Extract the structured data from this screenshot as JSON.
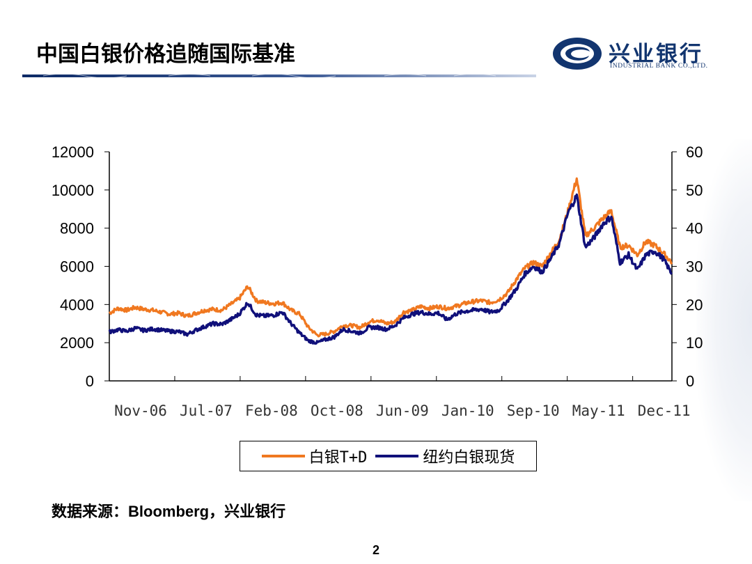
{
  "slide": {
    "title": "中国白银价格追随国际基准",
    "source": "数据来源：Bloomberg，兴业银行",
    "page_number": "2"
  },
  "logo": {
    "name_cn": "兴业银行",
    "name_en": "INDUSTRIAL BANK CO.,LTD.",
    "color": "#12356f"
  },
  "chart_data": {
    "type": "line",
    "y_left": {
      "ticks": [
        "12000",
        "10000",
        "8000",
        "6000",
        "4000",
        "2000",
        "0"
      ],
      "lim": [
        0,
        12000
      ]
    },
    "y_right": {
      "ticks": [
        "60",
        "50",
        "40",
        "30",
        "20",
        "10",
        "0"
      ],
      "lim": [
        0,
        60
      ]
    },
    "x_ticks": [
      "Nov-06",
      "Jul-07",
      "Feb-08",
      "Oct-08",
      "Jun-09",
      "Jan-10",
      "Sep-10",
      "May-11",
      "Dec-11"
    ],
    "series": [
      {
        "name": "白银T+D",
        "axis": "left",
        "color": "#f07820",
        "points": [
          [
            "2006-11",
            3550
          ],
          [
            "2006-12",
            3800
          ],
          [
            "2007-01",
            3700
          ],
          [
            "2007-02",
            3850
          ],
          [
            "2007-03",
            3750
          ],
          [
            "2007-04",
            3700
          ],
          [
            "2007-05",
            3600
          ],
          [
            "2007-06",
            3500
          ],
          [
            "2007-07",
            3550
          ],
          [
            "2007-08",
            3400
          ],
          [
            "2007-09",
            3550
          ],
          [
            "2007-10",
            3700
          ],
          [
            "2007-11",
            3750
          ],
          [
            "2007-12",
            3700
          ],
          [
            "2008-01",
            4000
          ],
          [
            "2008-02",
            4300
          ],
          [
            "2008-03",
            4950
          ],
          [
            "2008-04",
            4200
          ],
          [
            "2008-05",
            4100
          ],
          [
            "2008-06",
            4050
          ],
          [
            "2008-07",
            4100
          ],
          [
            "2008-08",
            3700
          ],
          [
            "2008-09",
            3500
          ],
          [
            "2008-10",
            2800
          ],
          [
            "2008-11",
            2400
          ],
          [
            "2008-12",
            2450
          ],
          [
            "2009-01",
            2600
          ],
          [
            "2009-02",
            2900
          ],
          [
            "2009-03",
            2900
          ],
          [
            "2009-04",
            2800
          ],
          [
            "2009-05",
            3100
          ],
          [
            "2009-06",
            3200
          ],
          [
            "2009-07",
            3000
          ],
          [
            "2009-08",
            3100
          ],
          [
            "2009-09",
            3600
          ],
          [
            "2009-10",
            3700
          ],
          [
            "2009-11",
            3900
          ],
          [
            "2009-12",
            3800
          ],
          [
            "2010-01",
            3900
          ],
          [
            "2010-02",
            3800
          ],
          [
            "2010-03",
            3900
          ],
          [
            "2010-04",
            4050
          ],
          [
            "2010-05",
            4150
          ],
          [
            "2010-06",
            4200
          ],
          [
            "2010-07",
            4100
          ],
          [
            "2010-08",
            4250
          ],
          [
            "2010-09",
            4600
          ],
          [
            "2010-10",
            5300
          ],
          [
            "2010-11",
            5900
          ],
          [
            "2010-12",
            6200
          ],
          [
            "2011-01",
            6000
          ],
          [
            "2011-02",
            6700
          ],
          [
            "2011-03",
            7400
          ],
          [
            "2011-04",
            8900
          ],
          [
            "2011-05",
            10600
          ],
          [
            "2011-06",
            7600
          ],
          [
            "2011-07",
            8000
          ],
          [
            "2011-08",
            8500
          ],
          [
            "2011-09",
            8900
          ],
          [
            "2011-10",
            7000
          ],
          [
            "2011-11",
            7100
          ],
          [
            "2011-12",
            6600
          ],
          [
            "2012-01",
            7300
          ],
          [
            "2012-02",
            7100
          ],
          [
            "2012-03",
            6700
          ],
          [
            "2012-04",
            6200
          ]
        ]
      },
      {
        "name": "纽约白银现货",
        "axis": "right",
        "color": "#10107a",
        "points": [
          [
            "2006-11",
            12.8
          ],
          [
            "2006-12",
            13.4
          ],
          [
            "2007-01",
            13.0
          ],
          [
            "2007-02",
            13.8
          ],
          [
            "2007-03",
            13.2
          ],
          [
            "2007-04",
            13.6
          ],
          [
            "2007-05",
            13.3
          ],
          [
            "2007-06",
            13.0
          ],
          [
            "2007-07",
            12.9
          ],
          [
            "2007-08",
            12.2
          ],
          [
            "2007-09",
            13.3
          ],
          [
            "2007-10",
            14.2
          ],
          [
            "2007-11",
            15.0
          ],
          [
            "2007-12",
            14.8
          ],
          [
            "2008-01",
            16.0
          ],
          [
            "2008-02",
            17.5
          ],
          [
            "2008-03",
            20.5
          ],
          [
            "2008-04",
            17.2
          ],
          [
            "2008-05",
            17.0
          ],
          [
            "2008-06",
            17.2
          ],
          [
            "2008-07",
            18.0
          ],
          [
            "2008-08",
            15.0
          ],
          [
            "2008-09",
            12.5
          ],
          [
            "2008-10",
            10.5
          ],
          [
            "2008-11",
            10.0
          ],
          [
            "2008-12",
            10.8
          ],
          [
            "2009-01",
            11.5
          ],
          [
            "2009-02",
            13.5
          ],
          [
            "2009-03",
            13.0
          ],
          [
            "2009-04",
            12.5
          ],
          [
            "2009-05",
            14.0
          ],
          [
            "2009-06",
            14.0
          ],
          [
            "2009-07",
            13.5
          ],
          [
            "2009-08",
            14.5
          ],
          [
            "2009-09",
            16.5
          ],
          [
            "2009-10",
            17.5
          ],
          [
            "2009-11",
            18.0
          ],
          [
            "2009-12",
            17.5
          ],
          [
            "2010-01",
            17.8
          ],
          [
            "2010-02",
            16.0
          ],
          [
            "2010-03",
            17.5
          ],
          [
            "2010-04",
            18.2
          ],
          [
            "2010-05",
            18.5
          ],
          [
            "2010-06",
            18.8
          ],
          [
            "2010-07",
            18.0
          ],
          [
            "2010-08",
            18.5
          ],
          [
            "2010-09",
            21.0
          ],
          [
            "2010-10",
            24.0
          ],
          [
            "2010-11",
            28.0
          ],
          [
            "2010-12",
            30.0
          ],
          [
            "2011-01",
            28.5
          ],
          [
            "2011-02",
            32.0
          ],
          [
            "2011-03",
            36.0
          ],
          [
            "2011-04",
            44.0
          ],
          [
            "2011-05",
            48.5
          ],
          [
            "2011-06",
            35.0
          ],
          [
            "2011-07",
            37.5
          ],
          [
            "2011-08",
            41.0
          ],
          [
            "2011-09",
            43.0
          ],
          [
            "2011-10",
            31.0
          ],
          [
            "2011-11",
            33.0
          ],
          [
            "2011-12",
            29.0
          ],
          [
            "2012-01",
            33.0
          ],
          [
            "2012-02",
            34.0
          ],
          [
            "2012-03",
            32.0
          ],
          [
            "2012-04",
            28.0
          ]
        ]
      }
    ]
  }
}
